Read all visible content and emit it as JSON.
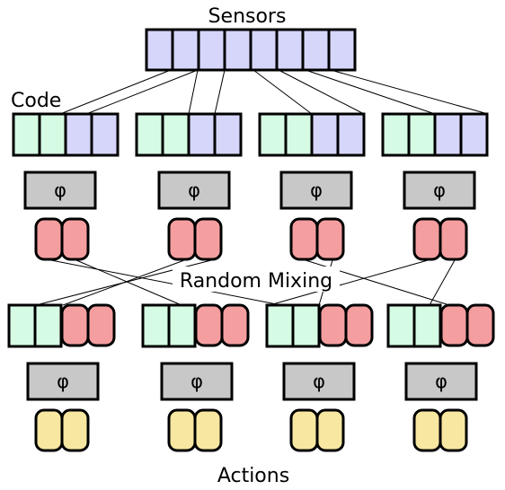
{
  "labels": {
    "sensors": "Sensors",
    "code": "Code",
    "mixing": "Random Mixing",
    "actions": "Actions"
  },
  "phi_symbol": "φ",
  "colors": {
    "sensor_cell": "#d6d6fb",
    "code_green": "#d6fbe4",
    "code_blue": "#d6d6fb",
    "phi_box": "#c8c8c8",
    "red_pill": "#f49ea0",
    "yellow_pill": "#f7e7a0",
    "stroke": "#000000"
  },
  "sensor_cell_count": 8,
  "code_groups": [
    {
      "green_cells": 2,
      "blue_cells": 2
    },
    {
      "green_cells": 2,
      "blue_cells": 2
    },
    {
      "green_cells": 2,
      "blue_cells": 2
    },
    {
      "green_cells": 2,
      "blue_cells": 2
    }
  ],
  "mixed_groups": [
    {
      "green_cells": 2,
      "red_pills": 2
    },
    {
      "green_cells": 2,
      "red_pills": 2
    },
    {
      "green_cells": 2,
      "red_pills": 2
    },
    {
      "green_cells": 2,
      "red_pills": 2
    }
  ],
  "action_groups": [
    {
      "yellow_pills": 2
    },
    {
      "yellow_pills": 2
    },
    {
      "yellow_pills": 2
    },
    {
      "yellow_pills": 2
    }
  ]
}
